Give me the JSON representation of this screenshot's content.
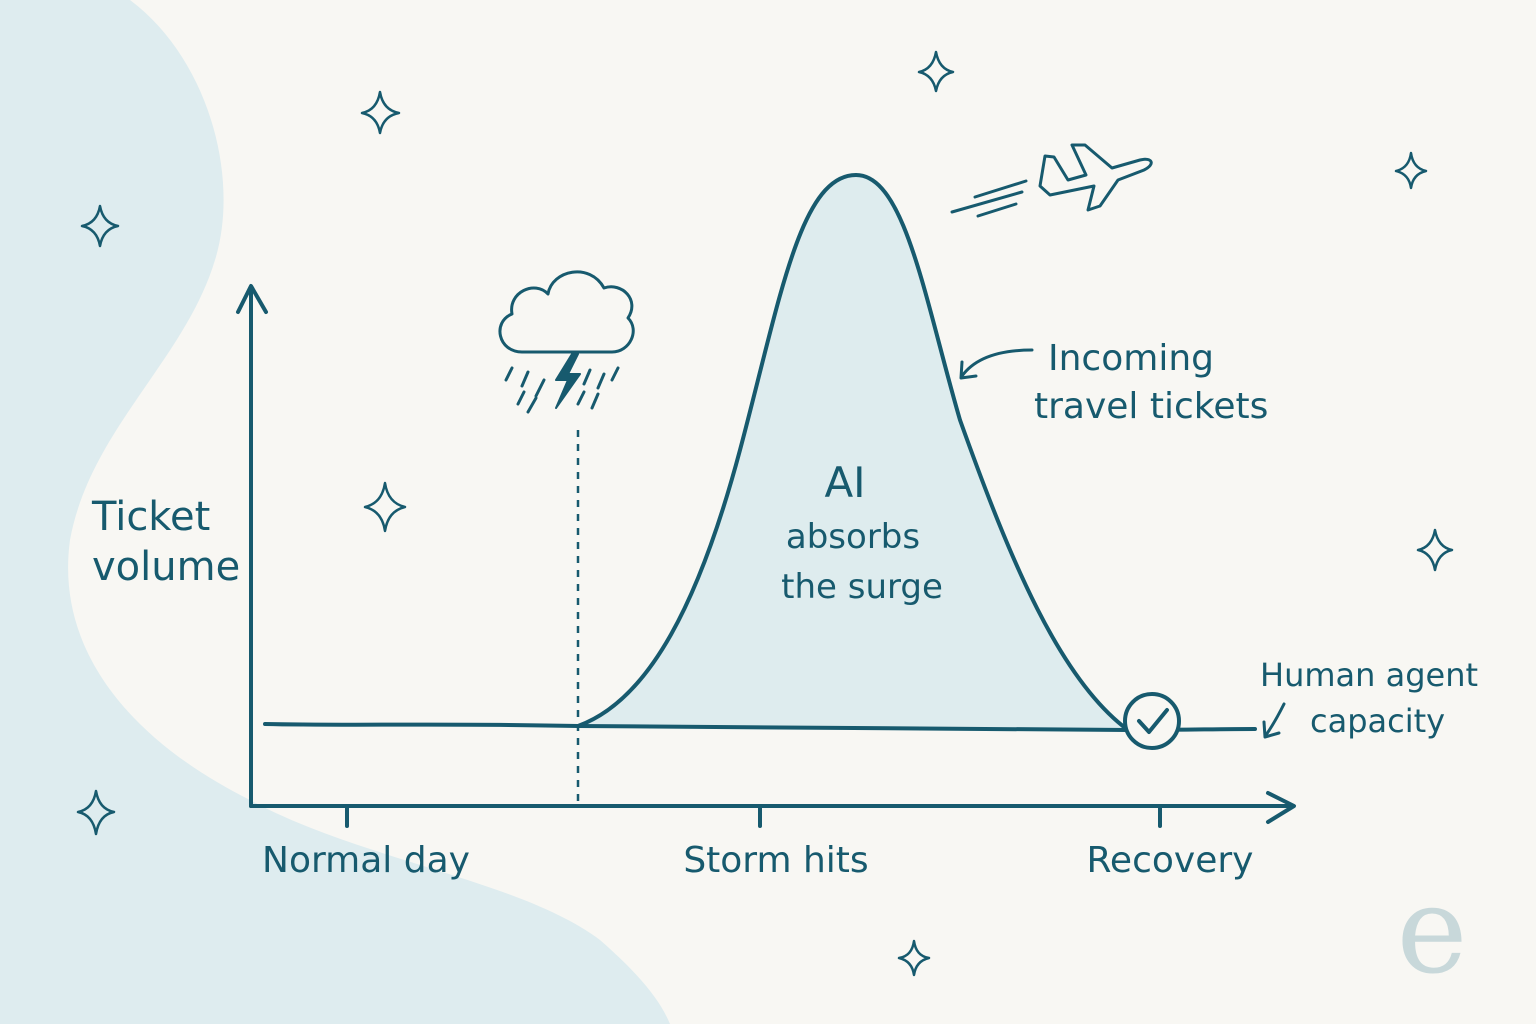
{
  "colors": {
    "background": "#f8f7f3",
    "blob": "#deecef",
    "ink": "#175a6e",
    "fill": "#deecee",
    "logo": "#c8d8da"
  },
  "axes": {
    "y_label_line1": "Ticket",
    "y_label_line2": "volume",
    "x_ticks": [
      "Normal day",
      "Storm hits",
      "Recovery"
    ]
  },
  "annotations": {
    "surge_line1": "AI",
    "surge_line2": "absorbs",
    "surge_line3": "the surge",
    "curve_label_line1": "Incoming",
    "curve_label_line2": "travel tickets",
    "capacity_label_line1": "Human agent",
    "capacity_label_line2": "capacity"
  },
  "icons": [
    "storm-cloud-icon",
    "airplane-icon",
    "checkmark-icon",
    "sparkle-icon"
  ],
  "logo": {
    "glyph": "e"
  }
}
